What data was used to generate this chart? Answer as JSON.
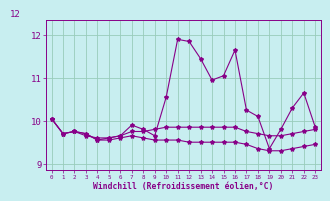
{
  "bg_color": "#c8eef0",
  "line_color": "#880088",
  "grid_color": "#99ccbb",
  "xlabel": "Windchill (Refroidissement éolien,°C)",
  "xlim": [
    -0.5,
    23.5
  ],
  "ylim": [
    8.85,
    12.35
  ],
  "yticks": [
    9,
    10,
    11,
    12
  ],
  "xticks": [
    0,
    1,
    2,
    3,
    4,
    5,
    6,
    7,
    8,
    9,
    10,
    11,
    12,
    13,
    14,
    15,
    16,
    17,
    18,
    19,
    20,
    21,
    22,
    23
  ],
  "series": [
    [
      10.05,
      9.7,
      9.75,
      9.65,
      9.6,
      9.6,
      9.65,
      9.75,
      9.75,
      9.8,
      9.85,
      9.85,
      9.85,
      9.85,
      9.85,
      9.85,
      9.85,
      9.75,
      9.7,
      9.65,
      9.65,
      9.7,
      9.75,
      9.8
    ],
    [
      10.05,
      9.7,
      9.75,
      9.7,
      9.55,
      9.55,
      9.6,
      9.65,
      9.6,
      9.55,
      9.55,
      9.55,
      9.5,
      9.5,
      9.5,
      9.5,
      9.5,
      9.45,
      9.35,
      9.3,
      9.3,
      9.35,
      9.4,
      9.45
    ],
    [
      10.05,
      9.7,
      9.75,
      9.7,
      9.55,
      9.6,
      9.65,
      9.9,
      9.8,
      9.65,
      10.55,
      11.9,
      11.85,
      11.45,
      10.95,
      11.05,
      11.65,
      10.25,
      10.1,
      9.35,
      9.8,
      10.3,
      10.65,
      9.85
    ]
  ],
  "title": "12",
  "title_fontsize": 7
}
